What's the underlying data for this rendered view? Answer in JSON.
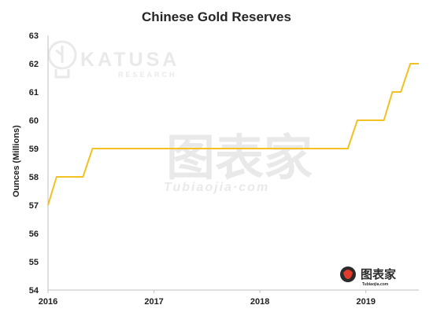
{
  "chart_data": {
    "type": "line",
    "title": "Chinese Gold Reserves",
    "ylabel": "Ounces (Millions)",
    "xlabel": "",
    "ylim": [
      54,
      63
    ],
    "yticks": [
      54,
      55,
      56,
      57,
      58,
      59,
      60,
      61,
      62,
      63
    ],
    "xlim": [
      2016,
      2019.5
    ],
    "xticks": [
      2016,
      2017,
      2018,
      2019
    ],
    "grid": false,
    "legend": "none",
    "series": [
      {
        "color": "#f5c022",
        "points": [
          [
            2016.0,
            57.0
          ],
          [
            2016.08,
            58.0
          ],
          [
            2016.33,
            58.0
          ],
          [
            2016.42,
            59.0
          ],
          [
            2018.83,
            59.0
          ],
          [
            2018.92,
            60.0
          ],
          [
            2019.17,
            60.0
          ],
          [
            2019.25,
            61.0
          ],
          [
            2019.33,
            61.0
          ],
          [
            2019.42,
            62.0
          ],
          [
            2019.5,
            62.0
          ]
        ]
      }
    ]
  },
  "watermarks": {
    "katusa_name": "KATUSA",
    "katusa_sub": "RESEARCH",
    "tubiaojia_cn": "图表家",
    "tubiaojia_en": "Tubiaojia·com",
    "corner_cn": "图表家",
    "corner_en": "Tubiaojia.com"
  },
  "colors": {
    "line": "#f5c022",
    "axis": "#bfbfbf",
    "text": "#1f1f1f"
  }
}
